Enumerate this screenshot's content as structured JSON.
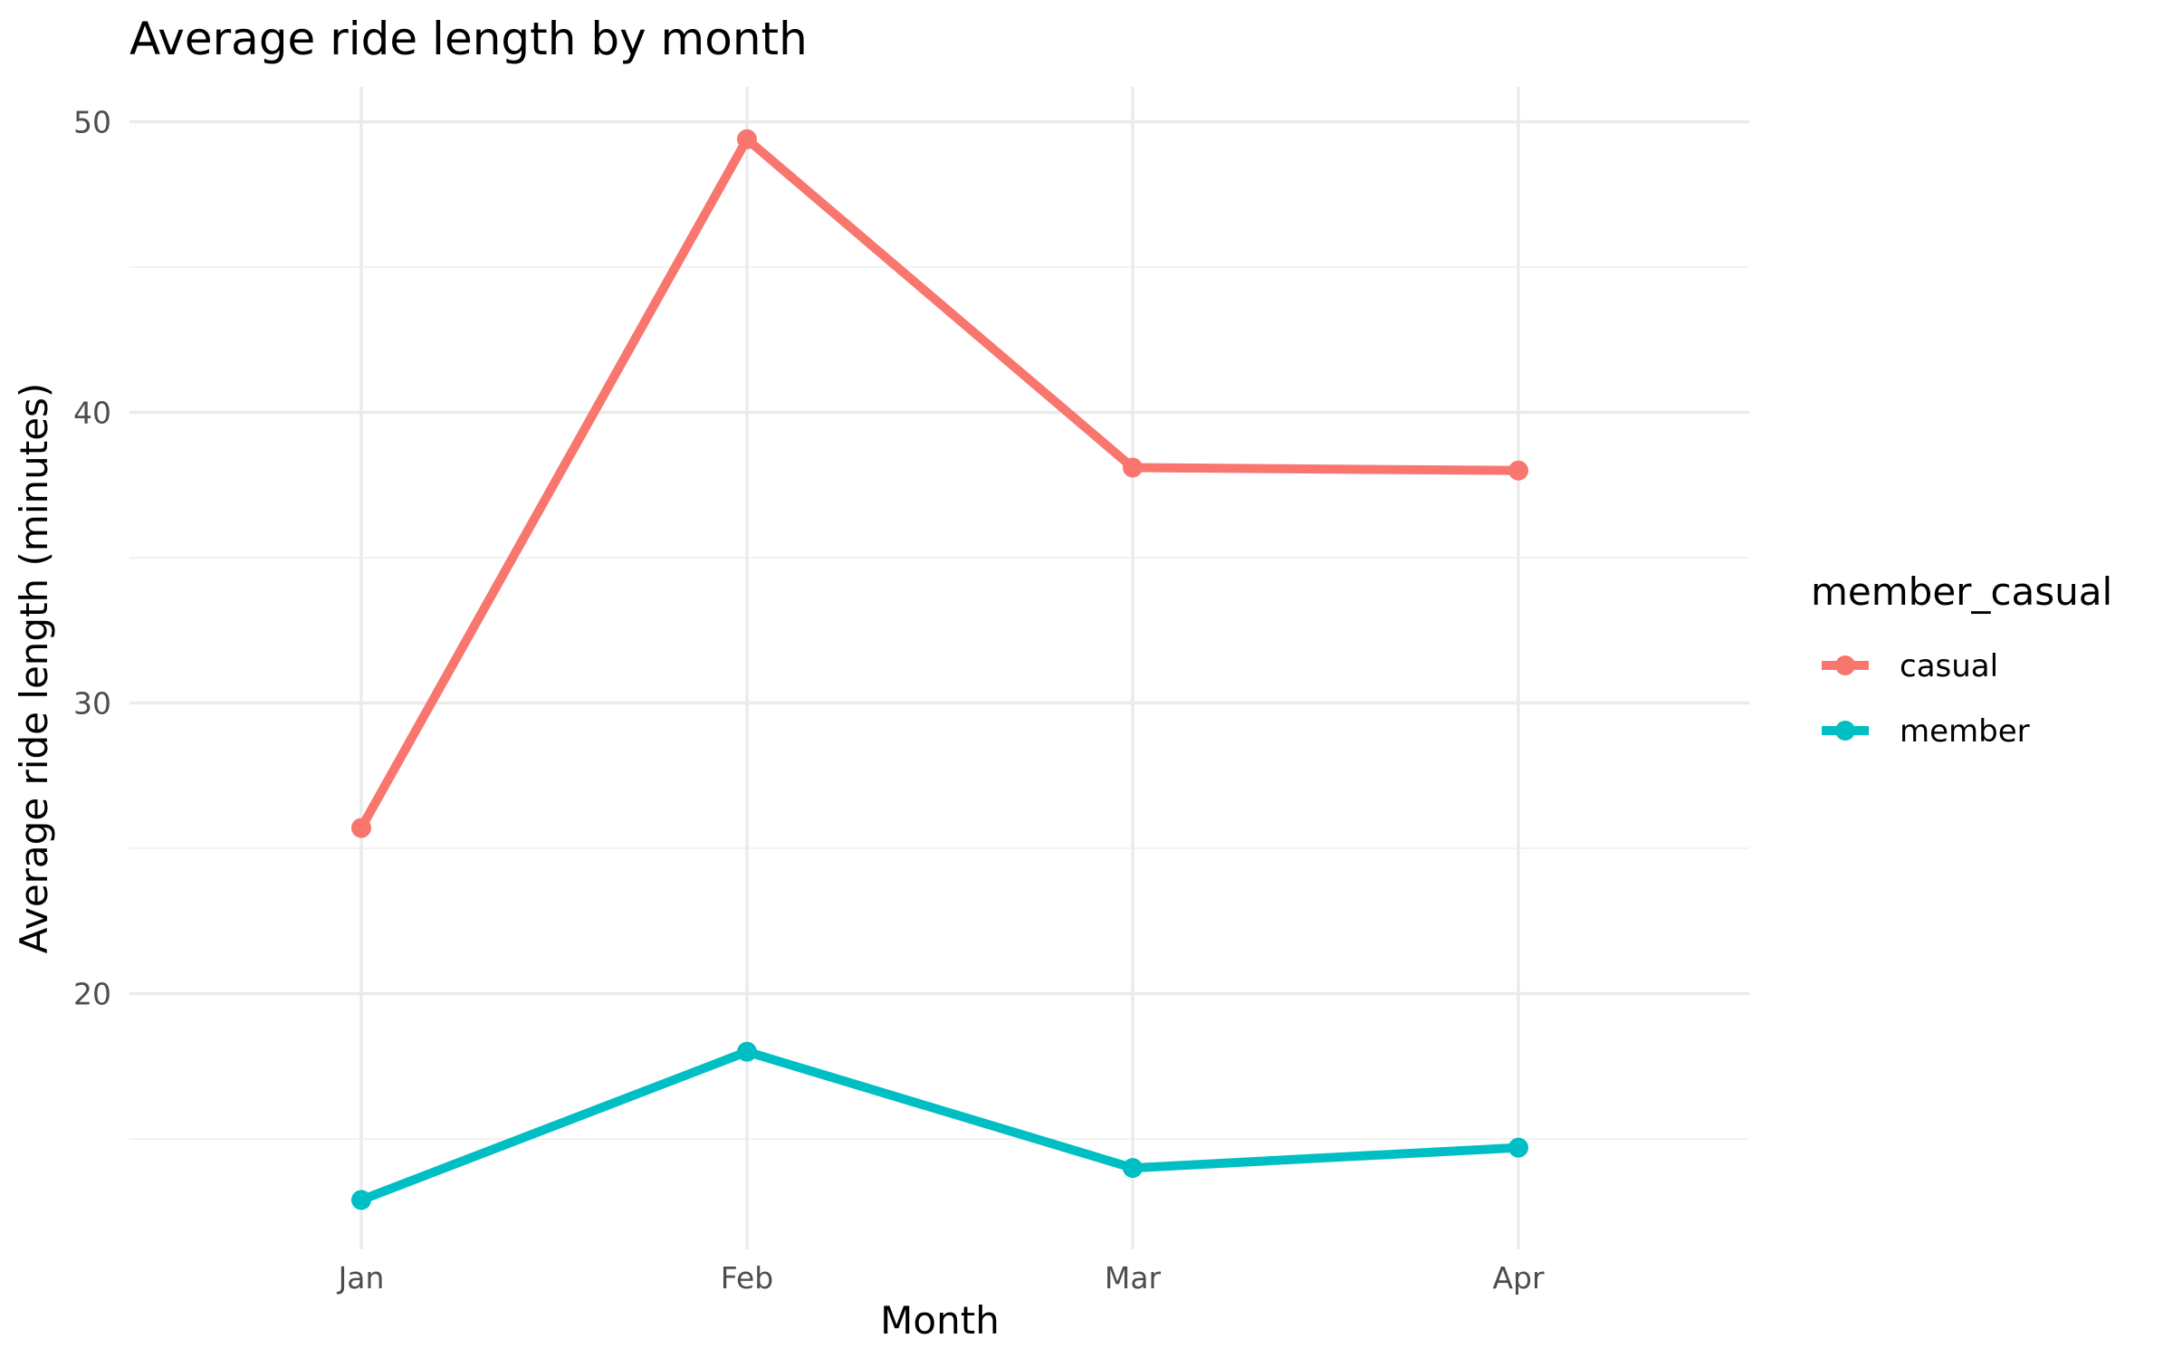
{
  "chart_data": {
    "type": "line",
    "title": "Average ride length by month",
    "xlabel": "Month",
    "ylabel": "Average ride length (minutes)",
    "categories": [
      "Jan",
      "Feb",
      "Mar",
      "Apr"
    ],
    "ylim": [
      11.2,
      51.2
    ],
    "yticks": [
      20,
      30,
      40,
      50
    ],
    "yminor": [
      15,
      25,
      35,
      45
    ],
    "grid": true,
    "legend": {
      "title": "member_casual",
      "placement": "right"
    },
    "series": [
      {
        "name": "casual",
        "color": "#f8766d",
        "values": [
          25.7,
          49.4,
          38.1,
          38.0
        ]
      },
      {
        "name": "member",
        "color": "#00bfc4",
        "values": [
          12.9,
          18.0,
          14.0,
          14.7
        ]
      }
    ]
  }
}
